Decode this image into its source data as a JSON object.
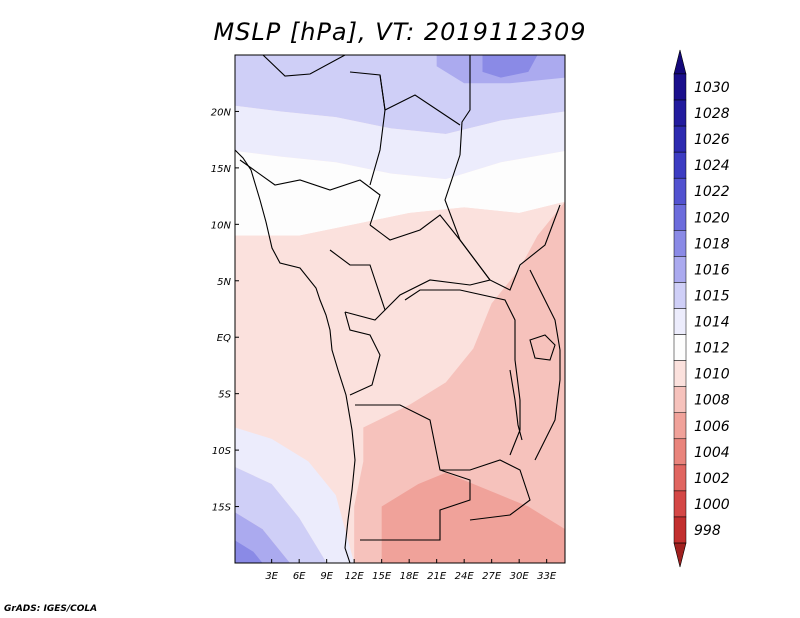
{
  "title": "MSLP [hPa], VT: 2019112309",
  "credit": "GrADS: IGES/COLA",
  "colors": {
    "background": "#ffffff",
    "coastline": "#000000",
    "frame": "#000000"
  },
  "chart_data": {
    "type": "heatmap",
    "variable": "MSLP",
    "units": "hPa",
    "valid_time": "2019112309",
    "xlim": [
      -1,
      35
    ],
    "ylim": [
      -20,
      25
    ],
    "x_ticks": [
      {
        "value": 3,
        "label": "3E"
      },
      {
        "value": 6,
        "label": "6E"
      },
      {
        "value": 9,
        "label": "9E"
      },
      {
        "value": 12,
        "label": "12E"
      },
      {
        "value": 15,
        "label": "15E"
      },
      {
        "value": 18,
        "label": "18E"
      },
      {
        "value": 21,
        "label": "21E"
      },
      {
        "value": 24,
        "label": "24E"
      },
      {
        "value": 27,
        "label": "27E"
      },
      {
        "value": 30,
        "label": "30E"
      },
      {
        "value": 33,
        "label": "33E"
      }
    ],
    "y_ticks": [
      {
        "value": 20,
        "label": "20N"
      },
      {
        "value": 15,
        "label": "15N"
      },
      {
        "value": 10,
        "label": "10N"
      },
      {
        "value": 5,
        "label": "5N"
      },
      {
        "value": 0,
        "label": "EQ"
      },
      {
        "value": -5,
        "label": "5S"
      },
      {
        "value": -10,
        "label": "10S"
      },
      {
        "value": -15,
        "label": "15S"
      }
    ],
    "colorbar": {
      "orientation": "vertical",
      "placement": "right",
      "levels": [
        {
          "label": "1030",
          "color": "#1a0f8c"
        },
        {
          "label": "1028",
          "color": "#221b9e"
        },
        {
          "label": "1026",
          "color": "#2d2ab0"
        },
        {
          "label": "1024",
          "color": "#3c3cc2"
        },
        {
          "label": "1022",
          "color": "#5252d0"
        },
        {
          "label": "1020",
          "color": "#6c6cdc"
        },
        {
          "label": "1018",
          "color": "#8a8ae6"
        },
        {
          "label": "1016",
          "color": "#abaaef"
        },
        {
          "label": "1015",
          "color": "#cfcff7"
        },
        {
          "label": "1014",
          "color": "#ececfc"
        },
        {
          "label": "1012",
          "color": "#fdfdfd"
        },
        {
          "label": "1010",
          "color": "#fbe1dd"
        },
        {
          "label": "1008",
          "color": "#f6c2bc"
        },
        {
          "label": "1006",
          "color": "#f0a29a"
        },
        {
          "label": "1004",
          "color": "#e9847c"
        },
        {
          "label": "1002",
          "color": "#e06560"
        },
        {
          "label": "1000",
          "color": "#d44746"
        },
        {
          "label": "998",
          "color": "#c22f2e"
        }
      ],
      "low_end_color": "#a0201f",
      "high_end_color": "#14087a"
    },
    "field_regions": [
      {
        "level": "1015",
        "color": "#cfcff7",
        "polygon": [
          [
            -1,
            25
          ],
          [
            35,
            25
          ],
          [
            35,
            20
          ],
          [
            28,
            19.2
          ],
          [
            22,
            18
          ],
          [
            16,
            18.5
          ],
          [
            10,
            19.5
          ],
          [
            4,
            20
          ],
          [
            -1,
            20.5
          ]
        ]
      },
      {
        "level": "1016",
        "color": "#abaaeF",
        "polygon": [
          [
            21,
            25
          ],
          [
            35,
            25
          ],
          [
            35,
            23
          ],
          [
            29,
            22.5
          ],
          [
            24,
            22.5
          ],
          [
            21,
            24
          ]
        ]
      },
      {
        "level": "1018",
        "color": "#8a8ae6",
        "polygon": [
          [
            26,
            25
          ],
          [
            32,
            25
          ],
          [
            31,
            23.5
          ],
          [
            28,
            23
          ],
          [
            26,
            23.5
          ]
        ]
      },
      {
        "level": "1014",
        "color": "#ececfc",
        "polygon": [
          [
            -1,
            20.5
          ],
          [
            4,
            20
          ],
          [
            10,
            19.5
          ],
          [
            16,
            18.5
          ],
          [
            22,
            18
          ],
          [
            28,
            19.2
          ],
          [
            35,
            20
          ],
          [
            35,
            16.5
          ],
          [
            28,
            15.5
          ],
          [
            22,
            14
          ],
          [
            16,
            14.5
          ],
          [
            10,
            15.5
          ],
          [
            4,
            16
          ],
          [
            -1,
            16.5
          ]
        ]
      },
      {
        "level": "1012",
        "color": "#fdfdfd",
        "polygon": [
          [
            -1,
            16.5
          ],
          [
            4,
            16
          ],
          [
            10,
            15.5
          ],
          [
            16,
            14.5
          ],
          [
            22,
            14
          ],
          [
            28,
            15.5
          ],
          [
            35,
            16.5
          ],
          [
            35,
            12
          ],
          [
            30,
            11
          ],
          [
            24,
            11.5
          ],
          [
            18,
            11
          ],
          [
            12,
            10
          ],
          [
            6,
            9
          ],
          [
            -1,
            9
          ]
        ]
      },
      {
        "level": "1010",
        "color": "#fbe1dd",
        "polygon": [
          [
            -1,
            9
          ],
          [
            6,
            9
          ],
          [
            12,
            10
          ],
          [
            18,
            11
          ],
          [
            24,
            11.5
          ],
          [
            30,
            11
          ],
          [
            35,
            12
          ],
          [
            35,
            -20
          ],
          [
            12,
            -20
          ],
          [
            10,
            -14
          ],
          [
            7,
            -11
          ],
          [
            3,
            -9
          ],
          [
            -1,
            -8
          ]
        ]
      },
      {
        "level": "1008",
        "color": "#f6c2bc",
        "polygon": [
          [
            13,
            -8
          ],
          [
            18,
            -6
          ],
          [
            22,
            -4
          ],
          [
            25,
            -1
          ],
          [
            27,
            3
          ],
          [
            30,
            6
          ],
          [
            32,
            9
          ],
          [
            35,
            12
          ],
          [
            35,
            -20
          ],
          [
            12,
            -20
          ],
          [
            12,
            -15
          ],
          [
            13,
            -11
          ]
        ]
      },
      {
        "level": "1006",
        "color": "#f0a29a",
        "polygon": [
          [
            15,
            -15
          ],
          [
            19,
            -13
          ],
          [
            22,
            -12
          ],
          [
            25,
            -13
          ],
          [
            28,
            -14
          ],
          [
            31,
            -15
          ],
          [
            33,
            -16
          ],
          [
            35,
            -17
          ],
          [
            35,
            -20
          ],
          [
            15,
            -20
          ]
        ]
      },
      {
        "level": "1014",
        "color": "#ececfc",
        "polygon": [
          [
            -1,
            -8
          ],
          [
            3,
            -9
          ],
          [
            7,
            -11
          ],
          [
            10,
            -14
          ],
          [
            12,
            -20
          ],
          [
            9,
            -20
          ],
          [
            6,
            -16
          ],
          [
            3,
            -13
          ],
          [
            -1,
            -11.5
          ]
        ]
      },
      {
        "level": "1015",
        "color": "#cfcff7",
        "polygon": [
          [
            -1,
            -11.5
          ],
          [
            3,
            -13
          ],
          [
            6,
            -16
          ],
          [
            9,
            -20
          ],
          [
            5,
            -20
          ],
          [
            2,
            -17
          ],
          [
            -1,
            -15.5
          ]
        ]
      },
      {
        "level": "1016",
        "color": "#abaaef",
        "polygon": [
          [
            -1,
            -15.5
          ],
          [
            2,
            -17
          ],
          [
            5,
            -20
          ],
          [
            -1,
            -20
          ]
        ]
      },
      {
        "level": "1018",
        "color": "#8a8ae6",
        "polygon": [
          [
            -1,
            -18
          ],
          [
            1,
            -19
          ],
          [
            2,
            -20
          ],
          [
            -1,
            -20
          ]
        ]
      }
    ]
  }
}
